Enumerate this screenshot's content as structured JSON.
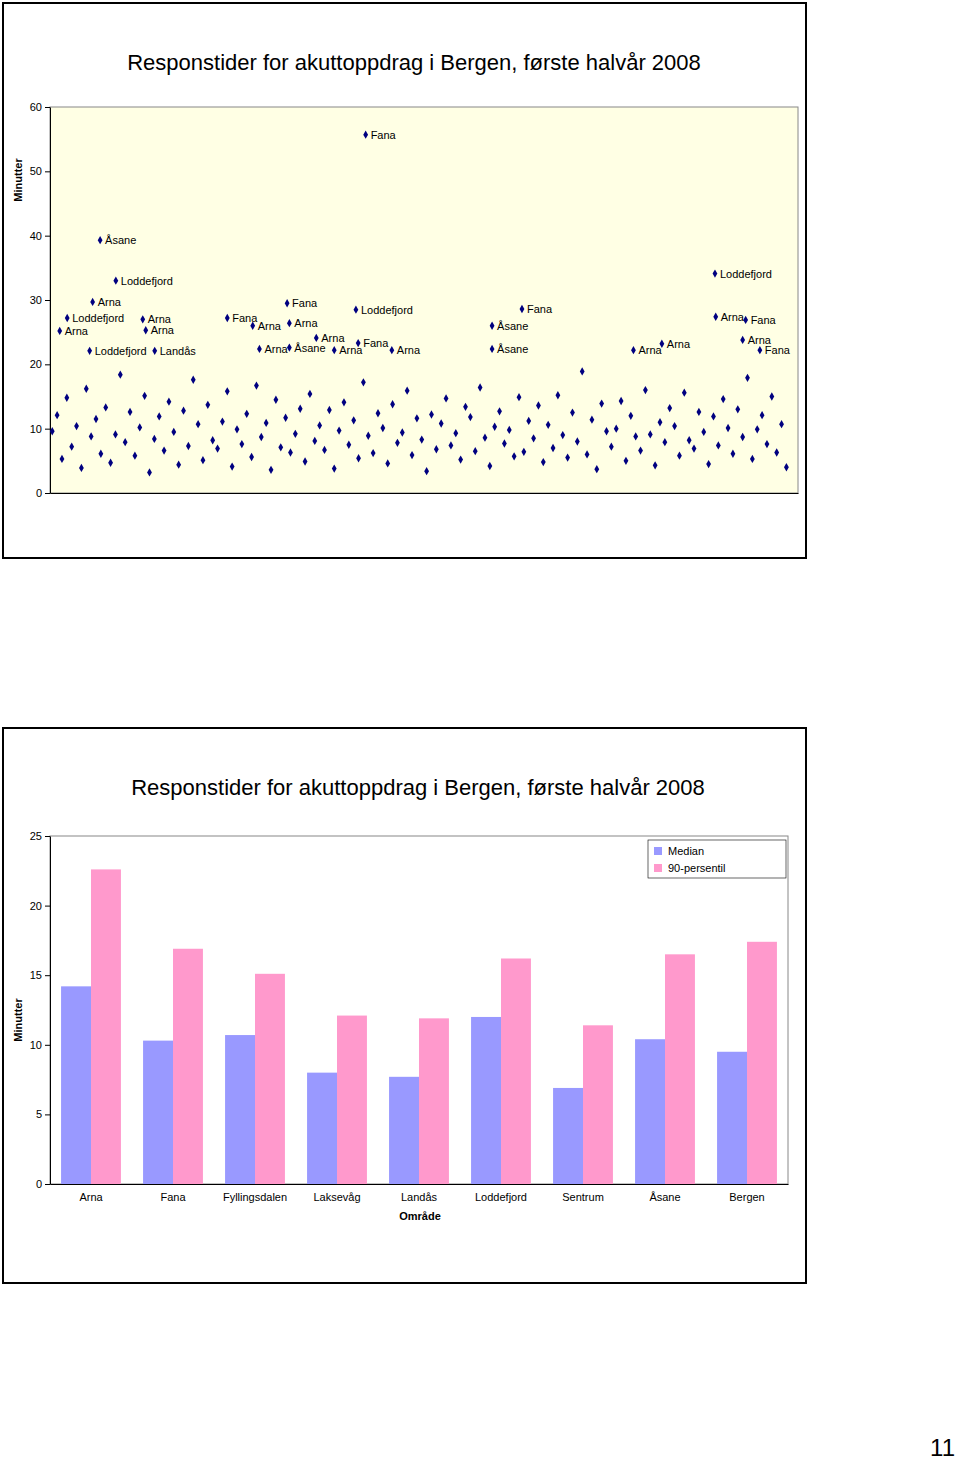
{
  "chart_data": [
    {
      "type": "scatter",
      "title": "Responstider for akuttoppdrag i Bergen, første halvår 2008",
      "y_label": "Minutter",
      "xlim": [
        0,
        1000
      ],
      "ylim": [
        0,
        60
      ],
      "yticks": [
        0,
        10,
        20,
        30,
        40,
        50,
        60
      ],
      "tick_labels": "y",
      "grid": false,
      "marker": "diamond",
      "color": "#000080",
      "series": [
        {
          "x": [
            3,
            9.5,
            16,
            22.5,
            29,
            35.5,
            42,
            48.5,
            55,
            61.5,
            68,
            74.5,
            81,
            87.5,
            94,
            100.5,
            107,
            113.5,
            120,
            126.5,
            133,
            139.5,
            146,
            152.5,
            159,
            165.5,
            172,
            178.5,
            185,
            191.5,
            198,
            204.5,
            211,
            217.5,
            224,
            230.5,
            237,
            243.5,
            250,
            256.5,
            263,
            269.5,
            276,
            282.5,
            289,
            295.5,
            302,
            308.5,
            315,
            321.5,
            328,
            334.5,
            341,
            347.5,
            354,
            360.5,
            367,
            373.5,
            380,
            386.5,
            393,
            399.5,
            406,
            412.5,
            419,
            425.5,
            432,
            438.5,
            445,
            451.5,
            458,
            464.5,
            471,
            477.5,
            484,
            490.5,
            497,
            503.5,
            510,
            516.5,
            523,
            529.5,
            536,
            542.5,
            549,
            555.5,
            562,
            568.5,
            575,
            581.5,
            588,
            594.5,
            601,
            607.5,
            614,
            620.5,
            627,
            633.5,
            640,
            646.5,
            653,
            659.5,
            666,
            672.5,
            679,
            685.5,
            692,
            698.5,
            705,
            711.5,
            718,
            724.5,
            731,
            737.5,
            744,
            750.5,
            757,
            763.5,
            770,
            776.5,
            783,
            789.5,
            796,
            802.5,
            809,
            815.5,
            822,
            828.5,
            835,
            841.5,
            848,
            854.5,
            861,
            867.5,
            874,
            880.5,
            887,
            893.5,
            900,
            906.5,
            913,
            919.5,
            926,
            932.5,
            939,
            945.5,
            952,
            958.5,
            965,
            971.5,
            978,
            984.5
          ],
          "values": [
            9.6,
            12.1,
            5.3,
            14.8,
            7.2,
            10.4,
            3.9,
            16.2,
            8.8,
            11.5,
            6.1,
            13.3,
            4.7,
            9.1,
            18.4,
            7.9,
            12.6,
            5.8,
            10.2,
            15.1,
            3.2,
            8.4,
            11.9,
            6.6,
            14.2,
            9.5,
            4.4,
            12.8,
            7.3,
            17.6,
            10.7,
            5.1,
            13.7,
            8.2,
            6.9,
            11.1,
            15.8,
            4.1,
            9.9,
            7.6,
            12.3,
            5.6,
            16.7,
            8.7,
            10.9,
            3.6,
            14.5,
            7.1,
            11.7,
            6.3,
            9.2,
            13.1,
            4.9,
            15.4,
            8.1,
            10.5,
            6.7,
            12.9,
            3.8,
            9.7,
            14.1,
            7.5,
            11.3,
            5.4,
            17.2,
            8.9,
            6.2,
            12.4,
            10.1,
            4.6,
            13.8,
            7.8,
            9.4,
            15.9,
            5.9,
            11.6,
            8.3,
            3.4,
            12.2,
            6.8,
            10.8,
            14.7,
            7.4,
            9.3,
            5.2,
            13.4,
            11.8,
            6.5,
            16.4,
            8.6,
            4.2,
            10.3,
            12.7,
            7.7,
            9.8,
            5.7,
            14.9,
            6.4,
            11.2,
            8.5,
            13.6,
            4.8,
            10.6,
            7.0,
            15.2,
            9.0,
            5.5,
            12.5,
            8.0,
            18.9,
            6.0,
            11.4,
            3.7,
            13.9,
            9.6,
            7.2,
            10.0,
            14.3,
            5.0,
            12.0,
            8.8,
            6.6,
            16.0,
            9.1,
            4.3,
            11.0,
            7.9,
            13.2,
            10.4,
            5.8,
            15.6,
            8.2,
            6.9,
            12.6,
            9.5,
            4.5,
            11.9,
            7.4,
            14.6,
            10.1,
            6.1,
            13.0,
            8.7,
            17.9,
            5.3,
            9.9,
            12.1,
            7.6,
            15.0,
            6.3,
            10.7,
            4.0
          ]
        },
        {
          "x": [
            422,
            67,
            88,
            57,
            23,
            13,
            124,
            128,
            53,
            140,
            237,
            271,
            317,
            320,
            356,
            280,
            320,
            380,
            409,
            412,
            457,
            631,
            591,
            591,
            780,
            818,
            889,
            890,
            930,
            926,
            949
          ],
          "values": [
            55.7,
            39.3,
            33.0,
            29.7,
            27.2,
            25.2,
            27.0,
            25.3,
            22.1,
            22.1,
            27.2,
            26.0,
            29.5,
            26.4,
            24.1,
            22.4,
            22.6,
            22.2,
            28.5,
            23.3,
            22.2,
            28.6,
            26.0,
            22.4,
            22.2,
            23.2,
            34.1,
            27.4,
            26.9,
            23.8,
            22.2
          ],
          "labels": [
            "Fana",
            "Åsane",
            "Loddefjord",
            "Arna",
            "Loddefjord",
            "Arna",
            "Arna",
            "Arna",
            "Loddefjord",
            "Landås",
            "Fana",
            "Arna",
            "Fana",
            "Arna",
            "Arna",
            "Arna",
            "Åsane",
            "Arna",
            "Loddefjord",
            "Fana",
            "Arna",
            "Fana",
            "Åsane",
            "Åsane",
            "Arna",
            "Arna",
            "Loddefjord",
            "Arna",
            "Fana",
            "Arna",
            "Fana"
          ]
        }
      ]
    },
    {
      "type": "bar",
      "title": "Responstider for akuttoppdrag i Bergen, første halvår 2008",
      "y_label": "Minutter",
      "x_label": "Område",
      "categories": [
        "Arna",
        "Fana",
        "Fyllingsdalen",
        "Laksevåg",
        "Landås",
        "Loddefjord",
        "Sentrum",
        "Åsane",
        "Bergen"
      ],
      "ylim": [
        0,
        25
      ],
      "yticks": [
        0,
        5,
        10,
        15,
        20,
        25
      ],
      "grid": false,
      "legend": "upper right",
      "series": [
        {
          "name": "Median",
          "color": "#9999ff",
          "values": [
            14.2,
            10.3,
            10.7,
            8.0,
            7.7,
            12.0,
            6.9,
            10.4,
            9.5
          ]
        },
        {
          "name": "90-persentil",
          "color": "#ff99cc",
          "values": [
            22.6,
            16.9,
            15.1,
            12.1,
            11.9,
            16.2,
            11.4,
            16.5,
            17.4
          ]
        }
      ]
    }
  ],
  "page_number": "11"
}
